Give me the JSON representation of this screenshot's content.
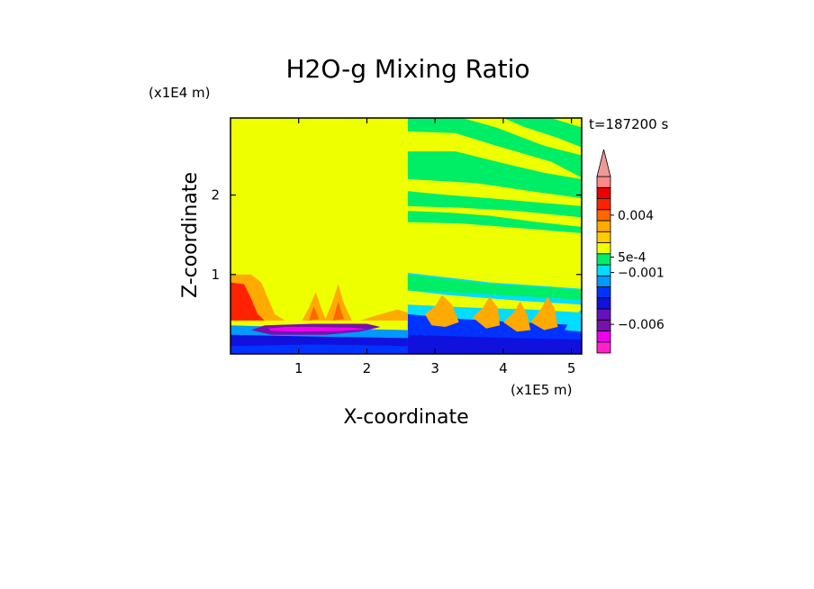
{
  "chart_data": {
    "type": "heatmap",
    "title": "H2O-g Mixing Ratio",
    "xlabel": "X-coordinate",
    "ylabel": "Z-coordinate",
    "x_scale_label": "(x1E5 m)",
    "y_scale_label": "(x1E4 m)",
    "time_label": "t=187200 s",
    "xlim": [
      0,
      5.15
    ],
    "ylim": [
      0,
      2.97
    ],
    "x_ticks": [
      {
        "v": 1,
        "label": "1"
      },
      {
        "v": 2,
        "label": "2"
      },
      {
        "v": 3,
        "label": "3"
      },
      {
        "v": 4,
        "label": "4"
      },
      {
        "v": 5,
        "label": "5"
      }
    ],
    "y_ticks": [
      {
        "v": 1,
        "label": "1"
      },
      {
        "v": 2,
        "label": "2"
      }
    ],
    "background_level": "yellow",
    "colorbar": {
      "colors": [
        "#ff22cc",
        "#ee00ee",
        "#7711aa",
        "#6611bb",
        "#1111dd",
        "#0033ff",
        "#0099ff",
        "#00ddff",
        "#00ee66",
        "#eeff00",
        "#ffcc00",
        "#ffaa00",
        "#ff6600",
        "#ff2200",
        "#ee0000",
        "#ff8888"
      ],
      "extend_color": "#ee9999",
      "labels": [
        {
          "label": "0.004",
          "level": 12.5
        },
        {
          "label": "5e-4",
          "level": 8.7
        },
        {
          "label": "−0.001",
          "level": 7.3
        },
        {
          "label": "−0.006",
          "level": 2.6
        }
      ]
    },
    "regions": [
      {
        "name": "green-band-1",
        "color": "#00ee66",
        "pts": [
          [
            2.6,
            2.97
          ],
          [
            3.4,
            2.97
          ],
          [
            3.9,
            2.85
          ],
          [
            4.6,
            2.62
          ],
          [
            5.15,
            2.5
          ],
          [
            5.15,
            2.22
          ],
          [
            4.7,
            2.42
          ],
          [
            3.9,
            2.62
          ],
          [
            3.3,
            2.78
          ],
          [
            2.6,
            2.8
          ]
        ]
      },
      {
        "name": "green-band-2",
        "color": "#00ee66",
        "pts": [
          [
            2.6,
            2.55
          ],
          [
            3.3,
            2.55
          ],
          [
            4.0,
            2.4
          ],
          [
            4.6,
            2.28
          ],
          [
            5.15,
            2.2
          ],
          [
            5.15,
            1.96
          ],
          [
            4.4,
            2.05
          ],
          [
            3.6,
            2.15
          ],
          [
            2.6,
            2.2
          ]
        ]
      },
      {
        "name": "green-band-3",
        "color": "#00ee66",
        "pts": [
          [
            2.6,
            2.05
          ],
          [
            3.2,
            2.0
          ],
          [
            3.8,
            1.96
          ],
          [
            4.6,
            1.9
          ],
          [
            5.15,
            1.86
          ],
          [
            5.15,
            1.72
          ],
          [
            4.2,
            1.8
          ],
          [
            3.4,
            1.84
          ],
          [
            2.6,
            1.86
          ]
        ]
      },
      {
        "name": "green-band-4",
        "color": "#00ee66",
        "pts": [
          [
            4.0,
            2.97
          ],
          [
            4.7,
            2.97
          ],
          [
            5.15,
            2.85
          ],
          [
            5.15,
            2.6
          ],
          [
            4.8,
            2.72
          ],
          [
            4.3,
            2.86
          ]
        ]
      },
      {
        "name": "green-band-5",
        "color": "#00ee66",
        "pts": [
          [
            2.6,
            1.8
          ],
          [
            3.2,
            1.78
          ],
          [
            3.8,
            1.74
          ],
          [
            4.5,
            1.66
          ],
          [
            5.15,
            1.6
          ],
          [
            5.15,
            1.52
          ],
          [
            4.3,
            1.58
          ],
          [
            3.4,
            1.64
          ],
          [
            2.6,
            1.66
          ]
        ]
      },
      {
        "name": "cyan-upper-right",
        "color": "#00ddff",
        "pts": [
          [
            2.6,
            1.02
          ],
          [
            3.2,
            0.96
          ],
          [
            3.8,
            0.9
          ],
          [
            4.5,
            0.86
          ],
          [
            5.15,
            0.82
          ],
          [
            5.15,
            0.0
          ],
          [
            2.6,
            0.0
          ]
        ]
      },
      {
        "name": "green-upper-right",
        "color": "#00ee66",
        "pts": [
          [
            2.6,
            1.0
          ],
          [
            3.0,
            0.96
          ],
          [
            3.4,
            0.92
          ],
          [
            3.8,
            0.88
          ],
          [
            4.2,
            0.86
          ],
          [
            4.6,
            0.84
          ],
          [
            5.15,
            0.8
          ],
          [
            5.15,
            0.68
          ],
          [
            4.4,
            0.72
          ],
          [
            3.6,
            0.76
          ],
          [
            2.6,
            0.8
          ]
        ]
      },
      {
        "name": "yellow-mid-right",
        "color": "#eeff00",
        "pts": [
          [
            2.6,
            0.8
          ],
          [
            3.2,
            0.74
          ],
          [
            3.8,
            0.7
          ],
          [
            4.4,
            0.66
          ],
          [
            5.15,
            0.62
          ],
          [
            5.15,
            0.52
          ],
          [
            4.4,
            0.56
          ],
          [
            3.6,
            0.58
          ],
          [
            2.6,
            0.62
          ]
        ]
      },
      {
        "name": "blue-lower-right",
        "color": "#0033ff",
        "pts": [
          [
            2.6,
            0.5
          ],
          [
            3.4,
            0.44
          ],
          [
            4.2,
            0.4
          ],
          [
            5.15,
            0.36
          ],
          [
            5.15,
            0.0
          ],
          [
            2.6,
            0.0
          ]
        ]
      },
      {
        "name": "navy-lower-right",
        "color": "#1111dd",
        "pts": [
          [
            2.6,
            0.24
          ],
          [
            3.4,
            0.22
          ],
          [
            4.2,
            0.2
          ],
          [
            5.15,
            0.18
          ],
          [
            5.15,
            0.0
          ],
          [
            2.6,
            0.0
          ]
        ]
      },
      {
        "name": "orange-plume-r1",
        "color": "#ffaa00",
        "pts": [
          [
            2.85,
            0.5
          ],
          [
            3.0,
            0.6
          ],
          [
            3.1,
            0.74
          ],
          [
            3.25,
            0.62
          ],
          [
            3.35,
            0.4
          ],
          [
            3.15,
            0.34
          ],
          [
            2.95,
            0.36
          ]
        ]
      },
      {
        "name": "orange-plume-r2",
        "color": "#ffaa00",
        "pts": [
          [
            3.55,
            0.46
          ],
          [
            3.7,
            0.58
          ],
          [
            3.8,
            0.72
          ],
          [
            3.92,
            0.58
          ],
          [
            3.95,
            0.36
          ],
          [
            3.75,
            0.32
          ]
        ]
      },
      {
        "name": "orange-plume-r3",
        "color": "#ffaa00",
        "pts": [
          [
            4.0,
            0.4
          ],
          [
            4.15,
            0.52
          ],
          [
            4.25,
            0.66
          ],
          [
            4.35,
            0.5
          ],
          [
            4.4,
            0.3
          ],
          [
            4.2,
            0.28
          ]
        ]
      },
      {
        "name": "orange-plume-r4",
        "color": "#ffaa00",
        "pts": [
          [
            4.4,
            0.4
          ],
          [
            4.55,
            0.56
          ],
          [
            4.65,
            0.72
          ],
          [
            4.75,
            0.58
          ],
          [
            4.8,
            0.34
          ],
          [
            4.6,
            0.3
          ]
        ]
      },
      {
        "name": "cyan-plume-r5",
        "color": "#00ddff",
        "pts": [
          [
            4.9,
            0.3
          ],
          [
            5.0,
            0.46
          ],
          [
            5.15,
            0.56
          ],
          [
            5.15,
            0.28
          ]
        ]
      },
      {
        "name": "light-blue-lower-left",
        "color": "#0099ff",
        "pts": [
          [
            0.0,
            0.36
          ],
          [
            0.8,
            0.34
          ],
          [
            1.6,
            0.32
          ],
          [
            2.6,
            0.3
          ],
          [
            2.6,
            0.0
          ],
          [
            0.0,
            0.0
          ]
        ]
      },
      {
        "name": "navy-lower-left",
        "color": "#1111dd",
        "pts": [
          [
            0.0,
            0.24
          ],
          [
            1.2,
            0.22
          ],
          [
            2.6,
            0.2
          ],
          [
            2.6,
            0.0
          ],
          [
            0.0,
            0.0
          ]
        ]
      },
      {
        "name": "blue-lower-left",
        "color": "#0033ff",
        "pts": [
          [
            0.0,
            0.1
          ],
          [
            1.2,
            0.12
          ],
          [
            2.6,
            0.1
          ],
          [
            2.6,
            0.0
          ],
          [
            0.0,
            0.0
          ]
        ]
      },
      {
        "name": "purple-lens",
        "color": "#7711aa",
        "pts": [
          [
            0.3,
            0.3
          ],
          [
            0.5,
            0.36
          ],
          [
            1.2,
            0.38
          ],
          [
            2.0,
            0.38
          ],
          [
            2.2,
            0.34
          ],
          [
            1.9,
            0.28
          ],
          [
            1.4,
            0.24
          ],
          [
            0.6,
            0.24
          ]
        ]
      },
      {
        "name": "magenta-lens",
        "color": "#ee00ee",
        "pts": [
          [
            0.55,
            0.32
          ],
          [
            0.8,
            0.34
          ],
          [
            1.2,
            0.34
          ],
          [
            1.8,
            0.33
          ],
          [
            2.0,
            0.31
          ],
          [
            1.6,
            0.29
          ],
          [
            1.0,
            0.28
          ],
          [
            0.6,
            0.29
          ]
        ]
      },
      {
        "name": "orange-left-top",
        "color": "#ffaa00",
        "pts": [
          [
            0.0,
            1.0
          ],
          [
            0.3,
            1.0
          ],
          [
            0.45,
            0.9
          ],
          [
            0.55,
            0.7
          ],
          [
            0.65,
            0.5
          ],
          [
            0.8,
            0.42
          ],
          [
            0.0,
            0.42
          ]
        ]
      },
      {
        "name": "red-left-top",
        "color": "#ff2200",
        "pts": [
          [
            0.0,
            0.9
          ],
          [
            0.2,
            0.88
          ],
          [
            0.3,
            0.7
          ],
          [
            0.4,
            0.5
          ],
          [
            0.5,
            0.42
          ],
          [
            0.0,
            0.42
          ]
        ]
      },
      {
        "name": "orange-plume-l1",
        "color": "#ffaa00",
        "pts": [
          [
            1.05,
            0.42
          ],
          [
            1.15,
            0.58
          ],
          [
            1.25,
            0.78
          ],
          [
            1.32,
            0.6
          ],
          [
            1.4,
            0.42
          ]
        ]
      },
      {
        "name": "orange-plume-l2",
        "color": "#ffaa00",
        "pts": [
          [
            1.38,
            0.42
          ],
          [
            1.48,
            0.62
          ],
          [
            1.58,
            0.88
          ],
          [
            1.66,
            0.64
          ],
          [
            1.78,
            0.42
          ]
        ]
      },
      {
        "name": "orange-plume-l3",
        "color": "#ffaa00",
        "pts": [
          [
            1.9,
            0.42
          ],
          [
            2.2,
            0.5
          ],
          [
            2.45,
            0.56
          ],
          [
            2.6,
            0.52
          ],
          [
            2.6,
            0.42
          ]
        ]
      },
      {
        "name": "red-plume-l1",
        "color": "#ff6600",
        "pts": [
          [
            1.15,
            0.42
          ],
          [
            1.22,
            0.6
          ],
          [
            1.3,
            0.44
          ]
        ]
      },
      {
        "name": "red-plume-l2",
        "color": "#ff6600",
        "pts": [
          [
            1.5,
            0.42
          ],
          [
            1.58,
            0.66
          ],
          [
            1.66,
            0.44
          ]
        ]
      }
    ]
  }
}
